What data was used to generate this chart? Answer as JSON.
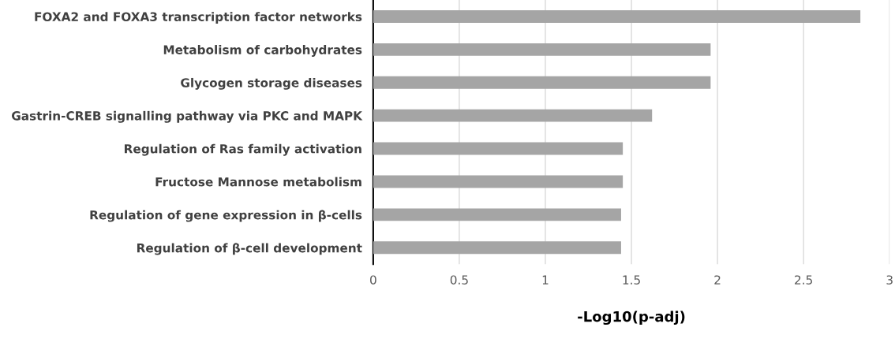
{
  "chart_data": {
    "type": "bar",
    "orientation": "horizontal",
    "xlabel": "-Log10(p-adj)",
    "categories": [
      "FOXA2 and FOXA3 transcription factor networks",
      "Metabolism of carbohydrates",
      "Glycogen storage diseases",
      "Gastrin-CREB signalling pathway via PKC and MAPK",
      "Regulation of Ras family activation",
      "Fructose Mannose metabolism",
      "Regulation of gene expression in β-cells",
      "Regulation of β-cell development"
    ],
    "values": [
      2.83,
      1.96,
      1.96,
      1.62,
      1.45,
      1.45,
      1.44,
      1.44
    ],
    "color": "#a5a5a5",
    "xlim": [
      0,
      3
    ],
    "xticks": [
      0,
      0.5,
      1,
      1.5,
      2,
      2.5,
      3
    ],
    "grid": "x",
    "legend": false
  }
}
